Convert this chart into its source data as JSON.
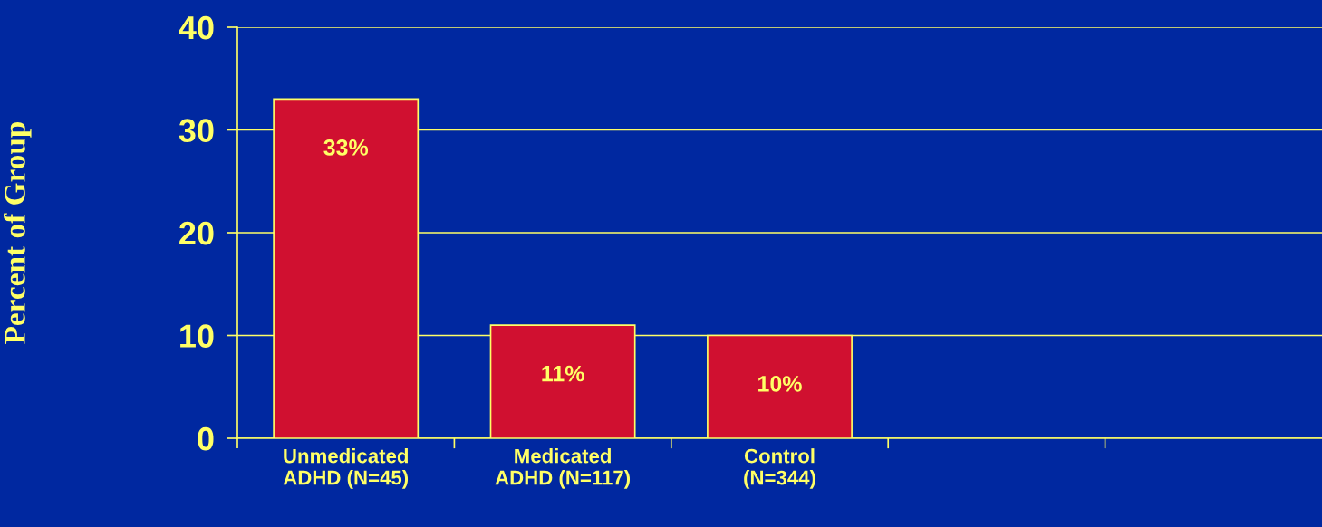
{
  "chart_data": {
    "type": "bar",
    "ylabel": "Percent of Group",
    "categories": [
      "Unmedicated\nADHD (N=45)",
      "Medicated\nADHD (N=117)",
      "Control\n(N=344)",
      null,
      null
    ],
    "values": [
      33,
      11,
      10,
      null,
      null
    ],
    "value_labels": [
      "33%",
      "11%",
      "10%",
      null,
      null
    ],
    "color": "#d01030",
    "ylim": [
      0,
      40
    ],
    "yticks": [
      0,
      10,
      20,
      30,
      40
    ],
    "grid": "y",
    "legend": false
  }
}
